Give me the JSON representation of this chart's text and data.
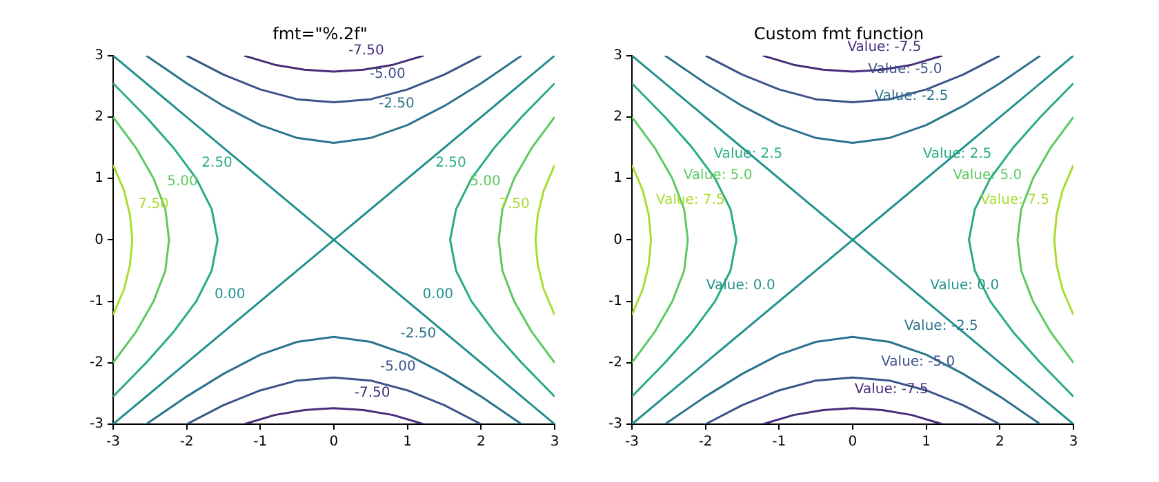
{
  "chart_data": [
    {
      "type": "line",
      "title": "fmt=\"%.2f\"",
      "xlim": [
        -3,
        3
      ],
      "ylim": [
        -3,
        3
      ],
      "xticks": [
        -3,
        -2,
        -1,
        0,
        1,
        2,
        3
      ],
      "yticks": [
        -3,
        -2,
        -1,
        0,
        1,
        2,
        3
      ],
      "grid": false,
      "legend": false,
      "marker": "none",
      "series": [
        {
          "name": "-7.50",
          "color": "#472c7a",
          "x": [
            -1.22,
            -0.8,
            -0.4,
            0,
            0.4,
            0.8,
            1.22,
            null,
            -1.22,
            -0.8,
            -0.4,
            0,
            0.4,
            0.8,
            1.22
          ],
          "values": [
            3,
            2.85,
            2.77,
            2.74,
            2.77,
            2.85,
            3,
            null,
            -3,
            -2.85,
            -2.77,
            -2.74,
            -2.77,
            -2.85,
            -3
          ]
        },
        {
          "name": "-5.00",
          "color": "#3b528b",
          "x": [
            -2,
            -1.5,
            -1,
            -0.5,
            0,
            0.5,
            1,
            1.5,
            2,
            null,
            -2,
            -1.5,
            -1,
            -0.5,
            0,
            0.5,
            1,
            1.5,
            2
          ],
          "values": [
            3,
            2.69,
            2.45,
            2.29,
            2.24,
            2.29,
            2.45,
            2.69,
            3,
            null,
            -3,
            -2.69,
            -2.45,
            -2.29,
            -2.24,
            -2.29,
            -2.45,
            -2.69,
            -3
          ]
        },
        {
          "name": "-2.50",
          "color": "#2c728e",
          "x": [
            -2.55,
            -2,
            -1.5,
            -1,
            -0.5,
            0,
            0.5,
            1,
            1.5,
            2,
            2.55,
            null,
            -2.55,
            -2,
            -1.5,
            -1,
            -0.5,
            0,
            0.5,
            1,
            1.5,
            2,
            2.55
          ],
          "values": [
            3,
            2.55,
            2.18,
            1.87,
            1.66,
            1.58,
            1.66,
            1.87,
            2.18,
            2.55,
            3,
            null,
            -3,
            -2.55,
            -2.18,
            -1.87,
            -1.66,
            -1.58,
            -1.66,
            -1.87,
            -2.18,
            -2.55,
            -3
          ]
        },
        {
          "name": "0.00",
          "color": "#21918c",
          "x": [
            -3,
            0,
            -3,
            null,
            3,
            0,
            3
          ],
          "values": [
            3,
            0,
            -3,
            null,
            3,
            0,
            -3
          ]
        },
        {
          "name": "2.50",
          "color": "#27ad81",
          "x": [
            3,
            2.55,
            2.18,
            1.87,
            1.66,
            1.58,
            1.66,
            1.87,
            2.18,
            2.55,
            3,
            null,
            -3,
            -2.55,
            -2.18,
            -1.87,
            -1.66,
            -1.58,
            -1.66,
            -1.87,
            -2.18,
            -2.55,
            -3
          ],
          "values": [
            -2.55,
            -2,
            -1.5,
            -1,
            -0.5,
            0,
            0.5,
            1,
            1.5,
            2,
            2.55,
            null,
            -2.55,
            -2,
            -1.5,
            -1,
            -0.5,
            0,
            0.5,
            1,
            1.5,
            2,
            2.55
          ]
        },
        {
          "name": "5.00",
          "color": "#5ec962",
          "x": [
            3,
            2.69,
            2.45,
            2.29,
            2.24,
            2.29,
            2.45,
            2.69,
            3,
            null,
            -3,
            -2.69,
            -2.45,
            -2.29,
            -2.24,
            -2.29,
            -2.45,
            -2.69,
            -3
          ],
          "values": [
            -2,
            -1.5,
            -1,
            -0.5,
            0,
            0.5,
            1,
            1.5,
            2,
            null,
            -2,
            -1.5,
            -1,
            -0.5,
            0,
            0.5,
            1,
            1.5,
            2
          ]
        },
        {
          "name": "7.50",
          "color": "#aadc32",
          "x": [
            3,
            2.85,
            2.77,
            2.74,
            2.77,
            2.85,
            3,
            null,
            -3,
            -2.85,
            -2.77,
            -2.74,
            -2.77,
            -2.85,
            -3
          ],
          "values": [
            -1.22,
            -0.8,
            -0.4,
            0,
            0.4,
            0.8,
            1.22,
            null,
            -1.22,
            -0.8,
            -0.4,
            0,
            0.4,
            0.8,
            1.22
          ]
        }
      ]
    },
    {
      "type": "line",
      "title": "Custom fmt function",
      "xlim": [
        -3,
        3
      ],
      "ylim": [
        -3,
        3
      ],
      "xticks": [
        -3,
        -2,
        -1,
        0,
        1,
        2,
        3
      ],
      "yticks": [
        -3,
        -2,
        -1,
        0,
        1,
        2,
        3
      ],
      "grid": false,
      "legend": false,
      "marker": "none",
      "series": [
        {
          "name": "Value: -7.5",
          "color": "#472c7a",
          "x": [
            -1.22,
            -0.8,
            -0.4,
            0,
            0.4,
            0.8,
            1.22,
            null,
            -1.22,
            -0.8,
            -0.4,
            0,
            0.4,
            0.8,
            1.22
          ],
          "values": [
            3,
            2.85,
            2.77,
            2.74,
            2.77,
            2.85,
            3,
            null,
            -3,
            -2.85,
            -2.77,
            -2.74,
            -2.77,
            -2.85,
            -3
          ]
        },
        {
          "name": "Value: -5.0",
          "color": "#3b528b",
          "x": [
            -2,
            -1.5,
            -1,
            -0.5,
            0,
            0.5,
            1,
            1.5,
            2,
            null,
            -2,
            -1.5,
            -1,
            -0.5,
            0,
            0.5,
            1,
            1.5,
            2
          ],
          "values": [
            3,
            2.69,
            2.45,
            2.29,
            2.24,
            2.29,
            2.45,
            2.69,
            3,
            null,
            -3,
            -2.69,
            -2.45,
            -2.29,
            -2.24,
            -2.29,
            -2.45,
            -2.69,
            -3
          ]
        },
        {
          "name": "Value: -2.5",
          "color": "#2c728e",
          "x": [
            -2.55,
            -2,
            -1.5,
            -1,
            -0.5,
            0,
            0.5,
            1,
            1.5,
            2,
            2.55,
            null,
            -2.55,
            -2,
            -1.5,
            -1,
            -0.5,
            0,
            0.5,
            1,
            1.5,
            2,
            2.55
          ],
          "values": [
            3,
            2.55,
            2.18,
            1.87,
            1.66,
            1.58,
            1.66,
            1.87,
            2.18,
            2.55,
            3,
            null,
            -3,
            -2.55,
            -2.18,
            -1.87,
            -1.66,
            -1.58,
            -1.66,
            -1.87,
            -2.18,
            -2.55,
            -3
          ]
        },
        {
          "name": "Value: 0.0",
          "color": "#21918c",
          "x": [
            -3,
            0,
            -3,
            null,
            3,
            0,
            3
          ],
          "values": [
            3,
            0,
            -3,
            null,
            3,
            0,
            -3
          ]
        },
        {
          "name": "Value: 2.5",
          "color": "#27ad81",
          "x": [
            3,
            2.55,
            2.18,
            1.87,
            1.66,
            1.58,
            1.66,
            1.87,
            2.18,
            2.55,
            3,
            null,
            -3,
            -2.55,
            -2.18,
            -1.87,
            -1.66,
            -1.58,
            -1.66,
            -1.87,
            -2.18,
            -2.55,
            -3
          ],
          "values": [
            -2.55,
            -2,
            -1.5,
            -1,
            -0.5,
            0,
            0.5,
            1,
            1.5,
            2,
            2.55,
            null,
            -2.55,
            -2,
            -1.5,
            -1,
            -0.5,
            0,
            0.5,
            1,
            1.5,
            2,
            2.55
          ]
        },
        {
          "name": "Value: 5.0",
          "color": "#5ec962",
          "x": [
            3,
            2.69,
            2.45,
            2.29,
            2.24,
            2.29,
            2.45,
            2.69,
            3,
            null,
            -3,
            -2.69,
            -2.45,
            -2.29,
            -2.24,
            -2.29,
            -2.45,
            -2.69,
            -3
          ],
          "values": [
            -2,
            -1.5,
            -1,
            -0.5,
            0,
            0.5,
            1,
            1.5,
            2,
            null,
            -2,
            -1.5,
            -1,
            -0.5,
            0,
            0.5,
            1,
            1.5,
            2
          ]
        },
        {
          "name": "Value: 7.5",
          "color": "#aadc32",
          "x": [
            3,
            2.85,
            2.77,
            2.74,
            2.77,
            2.85,
            3,
            null,
            -3,
            -2.85,
            -2.77,
            -2.74,
            -2.77,
            -2.85,
            -3
          ],
          "values": [
            -1.22,
            -0.8,
            -0.4,
            0,
            0.4,
            0.8,
            1.22,
            null,
            -1.22,
            -0.8,
            -0.4,
            0,
            0.4,
            0.8,
            1.22
          ]
        }
      ]
    }
  ]
}
